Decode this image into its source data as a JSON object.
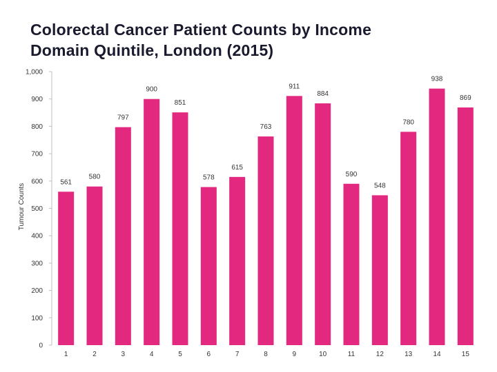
{
  "title": {
    "line1": "Colorectal Cancer Patient Counts by Income",
    "line2": "Domain Quintile, London (2015)"
  },
  "colors": {
    "bar": "#e3287f",
    "axis": "#bfbfbf",
    "text": "#333333"
  },
  "chart_data": {
    "type": "bar",
    "title": "Colorectal Cancer Patient Counts by Income Domain Quintile, London (2015)",
    "xlabel": "",
    "ylabel": "Tumour Counts",
    "ylim": [
      0,
      1000
    ],
    "yticks": [
      0,
      100,
      200,
      300,
      400,
      500,
      600,
      700,
      800,
      900,
      1000
    ],
    "ytick_labels": [
      "0",
      "100",
      "200",
      "300",
      "400",
      "500",
      "600",
      "700",
      "800",
      "900",
      "1,000"
    ],
    "categories": [
      "1",
      "2",
      "3",
      "4",
      "5",
      "6",
      "7",
      "8",
      "9",
      "10",
      "11",
      "12",
      "13",
      "14",
      "15"
    ],
    "values": [
      561,
      580,
      797,
      900,
      851,
      578,
      615,
      763,
      911,
      884,
      590,
      548,
      780,
      938,
      869
    ],
    "grid": false,
    "legend": "none"
  }
}
